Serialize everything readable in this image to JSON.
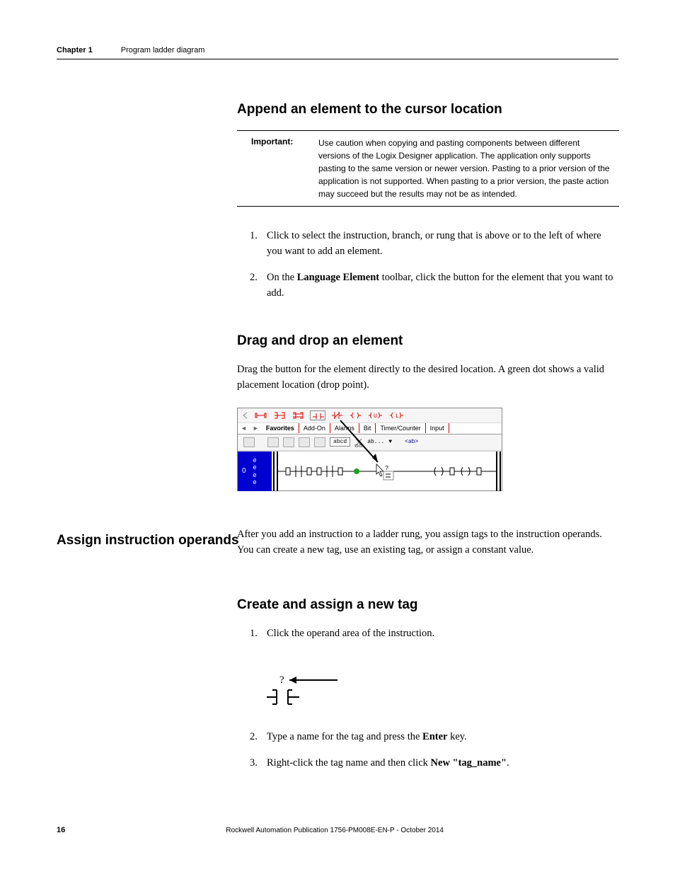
{
  "header": {
    "chapter_label": "Chapter 1",
    "chapter_title": "Program ladder diagram"
  },
  "section1": {
    "heading": "Append an element to the cursor location",
    "important_label": "Important:",
    "important_text": "Use caution when copying and pasting components between different versions of the Logix Designer application. The application only supports pasting to the same version or newer version. Pasting to a prior version of the application is not supported. When pasting to a prior version, the paste action may succeed but the results may not be as intended.",
    "steps": [
      "Click to select the instruction, branch, or rung that is above or to the left of where you want to add an element.",
      "On the <strong>Language Element</strong> toolbar, click the button for the element that you want to add."
    ]
  },
  "section2": {
    "heading": "Drag and drop an element",
    "body": "Drag the button for the element directly to the desired location. A green dot shows a valid placement location (drop point).",
    "toolbar": {
      "tabs": [
        "Favorites",
        "Add-On",
        "Alarms",
        "Bit",
        "Timer/Counter",
        "Input"
      ],
      "abcd_label": "abcd",
      "ab_label": "ab...",
      "ab_tag": "<ab>",
      "rung_num": "0",
      "rung_e": "e",
      "green_dot_color": "#1da01d",
      "rail_color": "#000000",
      "blue_bg": "#0000d0"
    }
  },
  "side_heading": "Assign instruction operands",
  "section3": {
    "body": "After you add an instruction to a ladder rung, you assign tags to the instruction operands. You can create a new tag, use an existing tag, or assign a constant value."
  },
  "section4": {
    "heading": "Create and assign a new tag",
    "steps": [
      "Click the operand area of the instruction.",
      "Type a name for the tag and press the <strong>Enter</strong> key.",
      "Right-click the tag name and then click <strong>New \"tag_name\"</strong>."
    ],
    "operand_q": "?"
  },
  "footer": {
    "page_num": "16",
    "pub": "Rockwell Automation Publication 1756-PM008E-EN-P - October 2014"
  }
}
